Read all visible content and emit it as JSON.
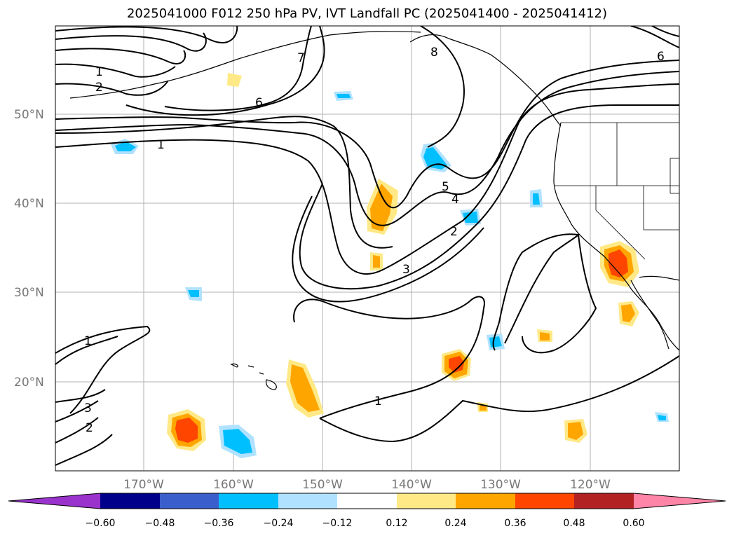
{
  "title": "2025041000 F012 250 hPa PV, IVT Landfall PC (2025041400 - 2025041412)",
  "latitude_labels": [
    "50°N",
    "40°N",
    "30°N",
    "20°N"
  ],
  "longitude_labels": [
    "170°W",
    "160°W",
    "150°W",
    "140°W",
    "130°W",
    "120°W"
  ],
  "contour_labels": [
    "1",
    "2",
    "6",
    "7",
    "8",
    "1",
    "5",
    "4",
    "2",
    "3",
    "1",
    "1",
    "3",
    "2",
    "6"
  ],
  "colorbar": {
    "labels": [
      "−0.60",
      "−0.48",
      "−0.36",
      "−0.24",
      "−0.12",
      "0.12",
      "0.24",
      "0.36",
      "0.48",
      "0.60"
    ],
    "colors": [
      "#9933cc",
      "#00008b",
      "#3a5fcd",
      "#00bfff",
      "#b0e2ff",
      "#ffffff",
      "#ffe987",
      "#ffa500",
      "#ff4500",
      "#b22222",
      "#ff85a8",
      "#ff85a8"
    ]
  },
  "map_colors": {
    "grid": "#b0b0b0",
    "lines": "#000000"
  }
}
